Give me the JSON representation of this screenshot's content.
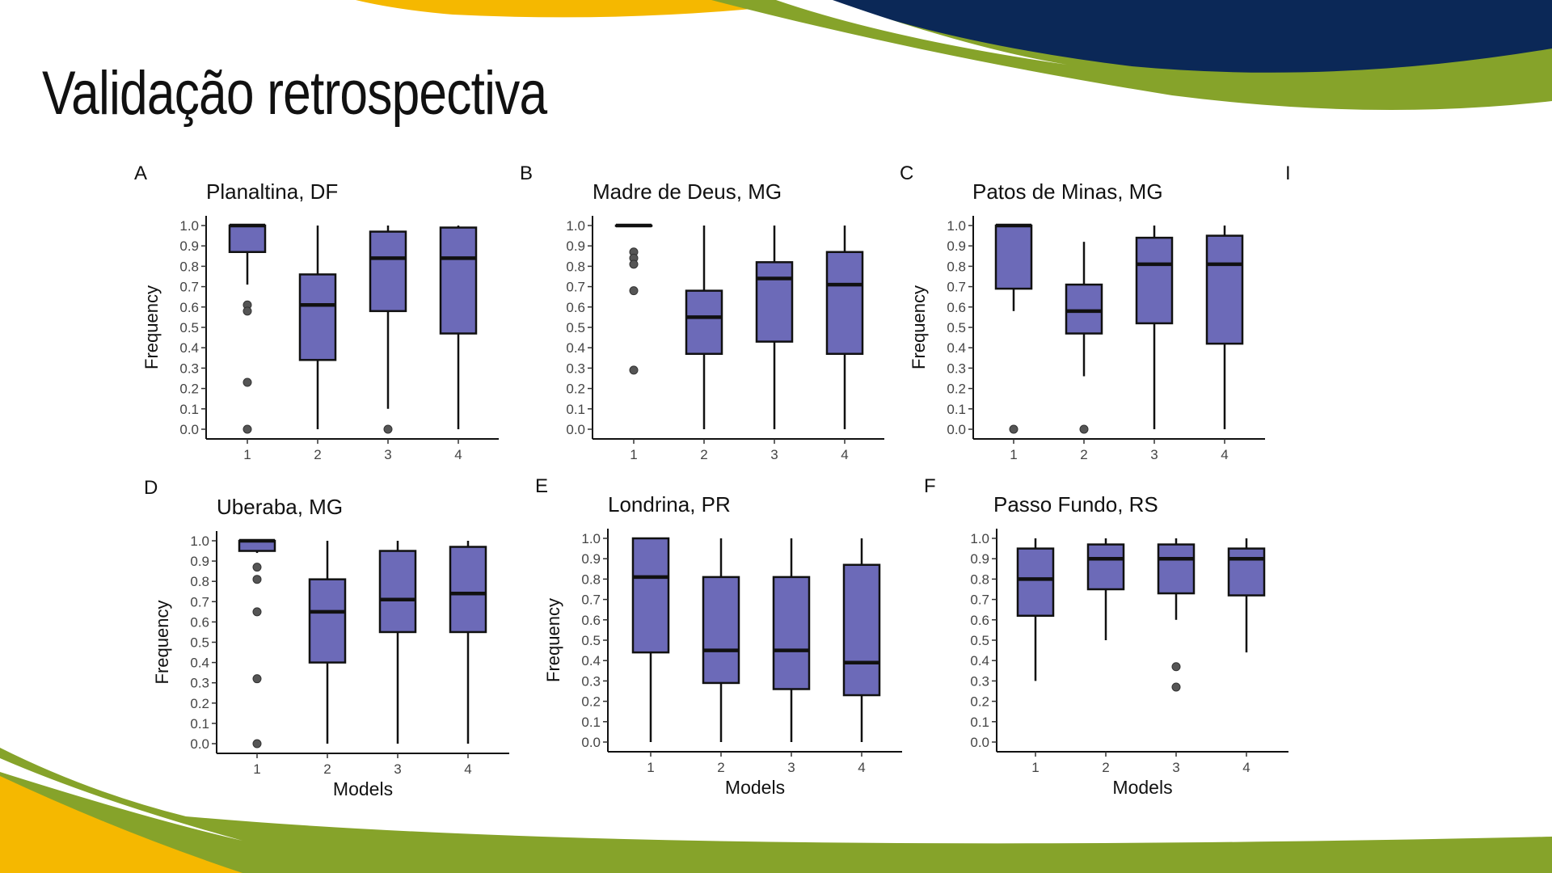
{
  "slide": {
    "title": "Validação retrospectiva",
    "colors": {
      "navy": "#0b2857",
      "green": "#86a32a",
      "yellow": "#f5b800",
      "box_fill": "#6c6ab8"
    }
  },
  "stray_label": "I",
  "chart_data": [
    {
      "type": "box",
      "panel": "A",
      "title": "Planaltina, DF",
      "ylabel": "Frequency",
      "xlabel": "",
      "ylim": [
        0,
        1
      ],
      "yticks": [
        "0.0",
        "0.1",
        "0.2",
        "0.3",
        "0.4",
        "0.5",
        "0.6",
        "0.7",
        "0.8",
        "0.9",
        "1.0"
      ],
      "categories": [
        "1",
        "2",
        "3",
        "4"
      ],
      "boxes": [
        {
          "whisker_low": 0.71,
          "q1": 0.87,
          "median": 1.0,
          "q3": 1.0,
          "whisker_high": 1.0,
          "outliers": [
            0.61,
            0.58,
            0.23,
            0.0
          ]
        },
        {
          "whisker_low": 0.0,
          "q1": 0.34,
          "median": 0.61,
          "q3": 0.76,
          "whisker_high": 1.0,
          "outliers": []
        },
        {
          "whisker_low": 0.1,
          "q1": 0.58,
          "median": 0.84,
          "q3": 0.97,
          "whisker_high": 1.0,
          "outliers": [
            0.0
          ]
        },
        {
          "whisker_low": 0.0,
          "q1": 0.47,
          "median": 0.84,
          "q3": 0.99,
          "whisker_high": 1.0,
          "outliers": []
        }
      ]
    },
    {
      "type": "box",
      "panel": "B",
      "title": "Madre de Deus, MG",
      "ylabel": "",
      "xlabel": "",
      "ylim": [
        0,
        1
      ],
      "yticks": [
        "0.0",
        "0.1",
        "0.2",
        "0.3",
        "0.4",
        "0.5",
        "0.6",
        "0.7",
        "0.8",
        "0.9",
        "1.0"
      ],
      "categories": [
        "1",
        "2",
        "3",
        "4"
      ],
      "boxes": [
        {
          "whisker_low": 1.0,
          "q1": 1.0,
          "median": 1.0,
          "q3": 1.0,
          "whisker_high": 1.0,
          "outliers": [
            0.87,
            0.84,
            0.81,
            0.68,
            0.29
          ]
        },
        {
          "whisker_low": 0.0,
          "q1": 0.37,
          "median": 0.55,
          "q3": 0.68,
          "whisker_high": 1.0,
          "outliers": []
        },
        {
          "whisker_low": 0.0,
          "q1": 0.43,
          "median": 0.74,
          "q3": 0.82,
          "whisker_high": 1.0,
          "outliers": []
        },
        {
          "whisker_low": 0.0,
          "q1": 0.37,
          "median": 0.71,
          "q3": 0.87,
          "whisker_high": 1.0,
          "outliers": []
        }
      ]
    },
    {
      "type": "box",
      "panel": "C",
      "title": "Patos de Minas, MG",
      "ylabel": "Frequency",
      "xlabel": "",
      "ylim": [
        0,
        1
      ],
      "yticks": [
        "0.0",
        "0.1",
        "0.2",
        "0.3",
        "0.4",
        "0.5",
        "0.6",
        "0.7",
        "0.8",
        "0.9",
        "1.0"
      ],
      "categories": [
        "1",
        "2",
        "3",
        "4"
      ],
      "boxes": [
        {
          "whisker_low": 0.58,
          "q1": 0.69,
          "median": 1.0,
          "q3": 1.0,
          "whisker_high": 1.0,
          "outliers": [
            0.0
          ]
        },
        {
          "whisker_low": 0.26,
          "q1": 0.47,
          "median": 0.58,
          "q3": 0.71,
          "whisker_high": 0.92,
          "outliers": [
            0.0
          ]
        },
        {
          "whisker_low": 0.0,
          "q1": 0.52,
          "median": 0.81,
          "q3": 0.94,
          "whisker_high": 1.0,
          "outliers": []
        },
        {
          "whisker_low": 0.0,
          "q1": 0.42,
          "median": 0.81,
          "q3": 0.95,
          "whisker_high": 1.0,
          "outliers": []
        }
      ]
    },
    {
      "type": "box",
      "panel": "D",
      "title": "Uberaba, MG",
      "ylabel": "Frequency",
      "xlabel": "Models",
      "ylim": [
        0,
        1
      ],
      "yticks": [
        "0.0",
        "0.1",
        "0.2",
        "0.3",
        "0.4",
        "0.5",
        "0.6",
        "0.7",
        "0.8",
        "0.9",
        "1.0"
      ],
      "categories": [
        "1",
        "2",
        "3",
        "4"
      ],
      "boxes": [
        {
          "whisker_low": 0.94,
          "q1": 0.95,
          "median": 1.0,
          "q3": 1.0,
          "whisker_high": 1.0,
          "outliers": [
            0.87,
            0.81,
            0.65,
            0.32,
            0.0
          ]
        },
        {
          "whisker_low": 0.0,
          "q1": 0.4,
          "median": 0.65,
          "q3": 0.81,
          "whisker_high": 1.0,
          "outliers": []
        },
        {
          "whisker_low": 0.0,
          "q1": 0.55,
          "median": 0.71,
          "q3": 0.95,
          "whisker_high": 1.0,
          "outliers": []
        },
        {
          "whisker_low": 0.0,
          "q1": 0.55,
          "median": 0.74,
          "q3": 0.97,
          "whisker_high": 1.0,
          "outliers": []
        }
      ]
    },
    {
      "type": "box",
      "panel": "E",
      "title": "Londrina, PR",
      "ylabel": "Frequency",
      "xlabel": "Models",
      "ylim": [
        0,
        1
      ],
      "yticks": [
        "0.0",
        "0.1",
        "0.2",
        "0.3",
        "0.4",
        "0.5",
        "0.6",
        "0.7",
        "0.8",
        "0.9",
        "1.0"
      ],
      "categories": [
        "1",
        "2",
        "3",
        "4"
      ],
      "boxes": [
        {
          "whisker_low": 0.0,
          "q1": 0.44,
          "median": 0.81,
          "q3": 1.0,
          "whisker_high": 1.0,
          "outliers": []
        },
        {
          "whisker_low": 0.0,
          "q1": 0.29,
          "median": 0.45,
          "q3": 0.81,
          "whisker_high": 1.0,
          "outliers": []
        },
        {
          "whisker_low": 0.0,
          "q1": 0.26,
          "median": 0.45,
          "q3": 0.81,
          "whisker_high": 1.0,
          "outliers": []
        },
        {
          "whisker_low": 0.0,
          "q1": 0.23,
          "median": 0.39,
          "q3": 0.87,
          "whisker_high": 1.0,
          "outliers": []
        }
      ]
    },
    {
      "type": "box",
      "panel": "F",
      "title": "Passo Fundo, RS",
      "ylabel": "",
      "xlabel": "Models",
      "ylim": [
        0,
        1
      ],
      "yticks": [
        "0.0",
        "0.1",
        "0.2",
        "0.3",
        "0.4",
        "0.5",
        "0.6",
        "0.7",
        "0.8",
        "0.9",
        "1.0"
      ],
      "categories": [
        "1",
        "2",
        "3",
        "4"
      ],
      "boxes": [
        {
          "whisker_low": 0.3,
          "q1": 0.62,
          "median": 0.8,
          "q3": 0.95,
          "whisker_high": 1.0,
          "outliers": []
        },
        {
          "whisker_low": 0.5,
          "q1": 0.75,
          "median": 0.9,
          "q3": 0.97,
          "whisker_high": 1.0,
          "outliers": []
        },
        {
          "whisker_low": 0.6,
          "q1": 0.73,
          "median": 0.9,
          "q3": 0.97,
          "whisker_high": 1.0,
          "outliers": [
            0.37,
            0.27
          ]
        },
        {
          "whisker_low": 0.44,
          "q1": 0.72,
          "median": 0.9,
          "q3": 0.95,
          "whisker_high": 1.0,
          "outliers": []
        }
      ]
    }
  ]
}
